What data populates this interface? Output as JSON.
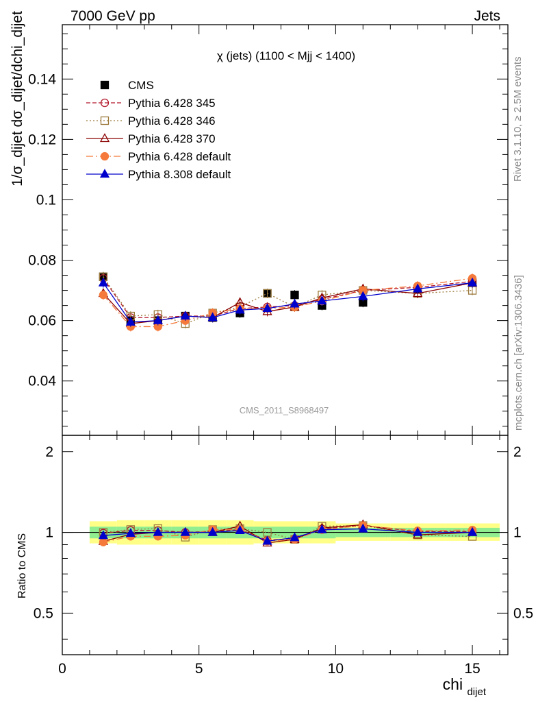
{
  "header": {
    "left": "7000 GeV pp",
    "right": "Jets",
    "side_rivet": "Rivet 3.1.10, ≥ 2.5M events",
    "side_mcplots": "mcplots.cern.ch [arXiv:1306.3436]"
  },
  "chart_data": {
    "type": "scatter",
    "title": "χ (jets) (1100 < Mjj < 1400)",
    "analysis_id": "CMS_2011_S8968497",
    "xlabel": "chi",
    "xlabel_sub": "dijet",
    "ylabel": "1/σ_dijet dσ_dijet/dchi_dijet",
    "ratio_ylabel": "Ratio to CMS",
    "xlim": [
      0,
      16.3
    ],
    "ylim": [
      0.022,
      0.158
    ],
    "ratio_ylim": [
      0.35,
      2.3
    ],
    "ratio_log": true,
    "xticks": [
      "0",
      "5",
      "10",
      "15"
    ],
    "yticks": [
      "0.04",
      "0.06",
      "0.08",
      "0.1",
      "0.12",
      "0.14"
    ],
    "ratio_yticks": [
      "0.5",
      "1",
      "2"
    ],
    "legend_position": "top-left",
    "bin_edges": [
      1,
      2,
      3,
      4,
      5,
      6,
      7,
      8,
      9,
      10,
      12,
      14,
      16
    ],
    "x": [
      1.5,
      2.5,
      3.5,
      4.5,
      5.5,
      6.5,
      7.5,
      8.5,
      9.5,
      11,
      13,
      15
    ],
    "series": [
      {
        "name": "CMS",
        "color": "#000000",
        "marker": "square-filled",
        "dash": "",
        "values": [
          0.0745,
          0.06,
          0.06,
          0.0615,
          0.061,
          0.0625,
          0.069,
          0.0685,
          0.065,
          0.066,
          0.0705,
          0.0725
        ]
      },
      {
        "name": "Pythia 6.428 345",
        "color": "#b2182b",
        "marker": "circle-open",
        "dash": "6,3",
        "values": [
          0.074,
          0.061,
          0.061,
          0.0615,
          0.0615,
          0.064,
          0.0645,
          0.065,
          0.067,
          0.07,
          0.071,
          0.073
        ]
      },
      {
        "name": "Pythia 6.428 346",
        "color": "#9c7a3c",
        "marker": "square-open",
        "dash": "2,3",
        "values": [
          0.0745,
          0.0615,
          0.062,
          0.059,
          0.0625,
          0.0645,
          0.069,
          0.0645,
          0.0685,
          0.07,
          0.069,
          0.07
        ]
      },
      {
        "name": "Pythia 6.428 370",
        "color": "#8b0000",
        "marker": "triangle-open",
        "dash": "",
        "values": [
          0.069,
          0.059,
          0.06,
          0.0615,
          0.061,
          0.066,
          0.063,
          0.0645,
          0.0675,
          0.0705,
          0.069,
          0.0725
        ]
      },
      {
        "name": "Pythia 6.428 default",
        "color": "#f5793a",
        "marker": "circle-filled",
        "dash": "10,4,2,4",
        "values": [
          0.0685,
          0.058,
          0.058,
          0.06,
          0.0625,
          0.064,
          0.064,
          0.0645,
          0.0665,
          0.07,
          0.0715,
          0.074
        ]
      },
      {
        "name": "Pythia 8.308 default",
        "color": "#0000cc",
        "marker": "triangle-filled",
        "dash": "",
        "values": [
          0.0725,
          0.0595,
          0.06,
          0.0615,
          0.061,
          0.0635,
          0.064,
          0.0655,
          0.0665,
          0.068,
          0.0705,
          0.0725
        ]
      }
    ],
    "band_color_stat": "#90ee90",
    "band_color_total": "#ffff88",
    "ratio_band_inner": [
      [
        0.95,
        1.05
      ],
      [
        0.95,
        1.05
      ],
      [
        0.95,
        1.05
      ],
      [
        0.95,
        1.05
      ],
      [
        0.95,
        1.05
      ],
      [
        0.95,
        1.05
      ],
      [
        0.95,
        1.05
      ],
      [
        0.95,
        1.05
      ],
      [
        0.95,
        1.05
      ],
      [
        0.96,
        1.04
      ],
      [
        0.96,
        1.04
      ],
      [
        0.96,
        1.04
      ]
    ],
    "ratio_band_outer": [
      [
        0.91,
        1.1
      ],
      [
        0.9,
        1.11
      ],
      [
        0.9,
        1.11
      ],
      [
        0.9,
        1.11
      ],
      [
        0.9,
        1.11
      ],
      [
        0.9,
        1.11
      ],
      [
        0.91,
        1.1
      ],
      [
        0.91,
        1.1
      ],
      [
        0.91,
        1.1
      ],
      [
        0.93,
        1.08
      ],
      [
        0.93,
        1.08
      ],
      [
        0.93,
        1.08
      ]
    ]
  }
}
